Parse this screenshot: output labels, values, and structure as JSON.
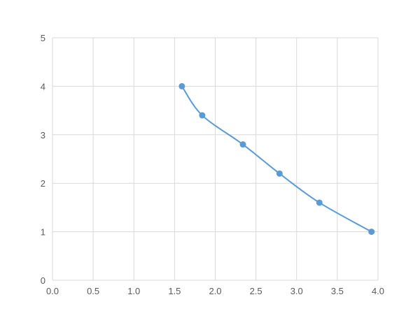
{
  "chart_data": {
    "type": "scatter",
    "title": "",
    "xlabel": "",
    "ylabel": "",
    "xlim": [
      0,
      4
    ],
    "ylim": [
      0,
      5
    ],
    "x_ticks": [
      "0.0",
      "0.5",
      "1.0",
      "1.5",
      "2.0",
      "2.5",
      "3.0",
      "3.5",
      "4.0"
    ],
    "y_ticks": [
      "0",
      "1",
      "2",
      "3",
      "4",
      "5"
    ],
    "grid": true,
    "smooth_line": true,
    "series": [
      {
        "color": "#5b9bd5",
        "x": [
          1.59,
          1.84,
          2.34,
          2.79,
          3.28,
          3.92
        ],
        "y": [
          4.0,
          3.4,
          2.8,
          2.2,
          1.6,
          1.0
        ]
      }
    ]
  }
}
